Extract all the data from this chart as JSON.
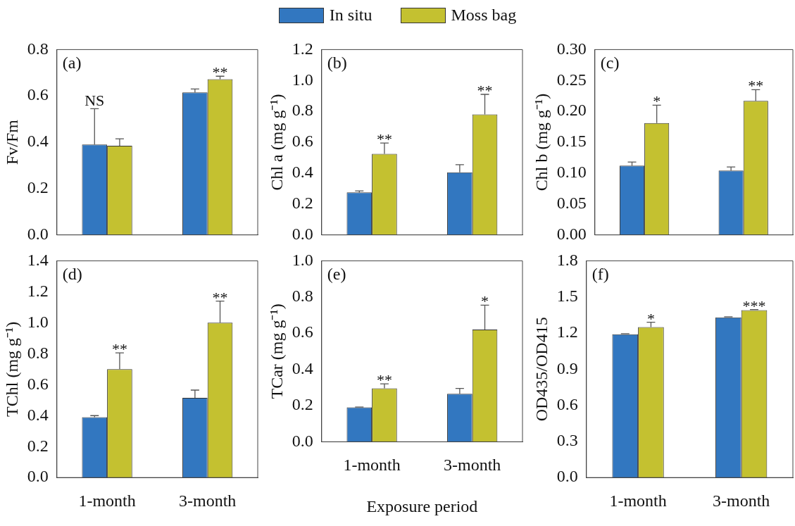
{
  "chart_data": [
    {
      "type": "bar",
      "categories": [
        "1-month",
        "3-month"
      ],
      "ylabel": "Fv/Fm",
      "ylim": [
        0,
        0.8
      ],
      "yticks": [
        {
          "value": 0,
          "label": "0.0"
        },
        {
          "value": 0.2,
          "label": "0.2"
        },
        {
          "value": 0.4,
          "label": "0.4"
        },
        {
          "value": 0.6,
          "label": "0.6"
        },
        {
          "value": 0.8,
          "label": "0.8"
        }
      ],
      "tick_labels": "y",
      "legend": "top",
      "series": [
        {
          "name": "In situ",
          "color": "#3277c0",
          "values": [
            0.39,
            0.615
          ],
          "errors": [
            [
              0.39,
              0.545
            ],
            [
              0.615,
              0.63
            ]
          ]
        },
        {
          "name": "Moss bag",
          "color": "#c4c130",
          "values": [
            0.385,
            0.672
          ],
          "errors": [
            [
              0.385,
              0.415
            ],
            [
              0.672,
              0.685
            ]
          ]
        }
      ],
      "annotations": [
        "(a)",
        {
          "text": "NS",
          "x": "1-month",
          "y": 0.39
        },
        {
          "text": "**",
          "x": "3-month",
          "y": 0.672
        }
      ]
    },
    {
      "type": "bar",
      "categories": [
        "1-month",
        "3-month"
      ],
      "ylabel": "Chl a (mg g⁻¹)",
      "ylim": [
        0,
        1.2
      ],
      "yticks": [
        {
          "value": 0,
          "label": "0.0"
        },
        {
          "value": 0.2,
          "label": "0.2"
        },
        {
          "value": 0.4,
          "label": "0.4"
        },
        {
          "value": 0.6,
          "label": "0.6"
        },
        {
          "value": 0.8,
          "label": "0.8"
        },
        {
          "value": 1.0,
          "label": "1.0"
        },
        {
          "value": 1.2,
          "label": "1.2"
        }
      ],
      "tick_labels": "y",
      "series": [
        {
          "name": "In situ",
          "color": "#3277c0",
          "values": [
            0.275,
            0.405
          ],
          "errors": [
            [
              0.275,
              0.285
            ],
            [
              0.405,
              0.455
            ]
          ]
        },
        {
          "name": "Moss bag",
          "color": "#c4c130",
          "values": [
            0.525,
            0.78
          ],
          "errors": [
            [
              0.525,
              0.595
            ],
            [
              0.78,
              0.91
            ]
          ]
        }
      ],
      "annotations": [
        "(b)",
        {
          "text": "**",
          "x": "1-month",
          "y": 0.525
        },
        {
          "text": "**",
          "x": "3-month",
          "y": 0.78
        }
      ]
    },
    {
      "type": "bar",
      "categories": [
        "1-month",
        "3-month"
      ],
      "ylabel": "Chl b (mg g⁻¹)",
      "ylim": [
        0,
        0.3
      ],
      "yticks": [
        {
          "value": 0,
          "label": "0.00"
        },
        {
          "value": 0.05,
          "label": "0.05"
        },
        {
          "value": 0.1,
          "label": "0.10"
        },
        {
          "value": 0.15,
          "label": "0.15"
        },
        {
          "value": 0.2,
          "label": "0.20"
        },
        {
          "value": 0.25,
          "label": "0.25"
        },
        {
          "value": 0.3,
          "label": "0.30"
        }
      ],
      "tick_labels": "y",
      "series": [
        {
          "name": "In situ",
          "color": "#3277c0",
          "values": [
            0.112,
            0.104
          ],
          "errors": [
            [
              0.112,
              0.118
            ],
            [
              0.104,
              0.11
            ]
          ]
        },
        {
          "name": "Moss bag",
          "color": "#c4c130",
          "values": [
            0.181,
            0.217
          ],
          "errors": [
            [
              0.181,
              0.21
            ],
            [
              0.217,
              0.235
            ]
          ]
        }
      ],
      "annotations": [
        "(c)",
        "*",
        {
          "text": "**",
          "x": "3-month",
          "y": 0.217
        }
      ]
    },
    {
      "type": "bar",
      "categories": [
        "1-month",
        "3-month"
      ],
      "ylabel": "TChl (mg g⁻¹)",
      "ylim": [
        0,
        1.4
      ],
      "yticks": [
        {
          "value": 0,
          "label": "0.0"
        },
        {
          "value": 0.2,
          "label": "0.2"
        },
        {
          "value": 0.4,
          "label": "0.4"
        },
        {
          "value": 0.6,
          "label": "0.6"
        },
        {
          "value": 0.8,
          "label": "0.8"
        },
        {
          "value": 1.0,
          "label": "1.0"
        },
        {
          "value": 1.2,
          "label": "1.2"
        },
        {
          "value": 1.4,
          "label": "1.4"
        }
      ],
      "series": [
        {
          "name": "In situ",
          "color": "#3277c0",
          "values": [
            0.39,
            0.515
          ],
          "errors": [
            [
              0.39,
              0.4
            ],
            [
              0.515,
              0.565
            ]
          ]
        },
        {
          "name": "Moss bag",
          "color": "#c4c130",
          "values": [
            0.7,
            1.0
          ],
          "errors": [
            [
              0.7,
              0.805
            ],
            [
              1.0,
              1.14
            ]
          ]
        }
      ],
      "annotations": [
        "(d)",
        {
          "text": "**",
          "x": "1-month",
          "y": 0.7
        },
        {
          "text": "**",
          "x": "3-month",
          "y": 1.0
        }
      ]
    },
    {
      "type": "bar",
      "categories": [
        "1-month",
        "3-month"
      ],
      "xlabel": "Exposure period",
      "ylabel": "TCar (mg g⁻¹)",
      "ylim": [
        0,
        1.0
      ],
      "yticks": [
        {
          "value": 0,
          "label": "0.0"
        },
        {
          "value": 0.2,
          "label": "0.2"
        },
        {
          "value": 0.4,
          "label": "0.4"
        },
        {
          "value": 0.6,
          "label": "0.6"
        },
        {
          "value": 0.8,
          "label": "0.8"
        },
        {
          "value": 1.0,
          "label": "1.0"
        }
      ],
      "series": [
        {
          "name": "In situ",
          "color": "#3277c0",
          "values": [
            0.19,
            0.265
          ],
          "errors": [
            [
              0.19,
              0.192
            ],
            [
              0.265,
              0.295
            ]
          ]
        },
        {
          "name": "Moss bag",
          "color": "#c4c130",
          "values": [
            0.295,
            0.62
          ],
          "errors": [
            [
              0.295,
              0.32
            ],
            [
              0.62,
              0.755
            ]
          ]
        }
      ],
      "annotations": [
        "(e)",
        {
          "text": "**",
          "x": "1-month",
          "y": 0.295
        },
        {
          "text": "*",
          "x": "3-month",
          "y": 0.62
        }
      ]
    },
    {
      "type": "bar",
      "categories": [
        "1-month",
        "3-month"
      ],
      "ylabel": "OD435/OD415",
      "ylim": [
        0,
        1.8
      ],
      "yticks": [
        {
          "value": 0,
          "label": "0.0"
        },
        {
          "value": 0.3,
          "label": "0.3"
        },
        {
          "value": 0.6,
          "label": "0.6"
        },
        {
          "value": 0.9,
          "label": "0.9"
        },
        {
          "value": 1.2,
          "label": "1.2"
        },
        {
          "value": 1.5,
          "label": "1.5"
        },
        {
          "value": 1.8,
          "label": "1.8"
        }
      ],
      "series": [
        {
          "name": "In situ",
          "color": "#3277c0",
          "values": [
            1.19,
            1.33
          ],
          "errors": [
            [
              1.19,
              1.195
            ],
            [
              1.33,
              1.335
            ]
          ]
        },
        {
          "name": "Moss bag",
          "color": "#c4c130",
          "values": [
            1.25,
            1.39
          ],
          "errors": [
            [
              1.25,
              1.29
            ],
            [
              1.39,
              1.395
            ]
          ]
        }
      ],
      "annotations": [
        "(f)",
        {
          "text": "*",
          "x": "1-month",
          "y": 1.25
        },
        {
          "text": "***",
          "x": "3-month",
          "y": 1.39
        }
      ]
    }
  ]
}
